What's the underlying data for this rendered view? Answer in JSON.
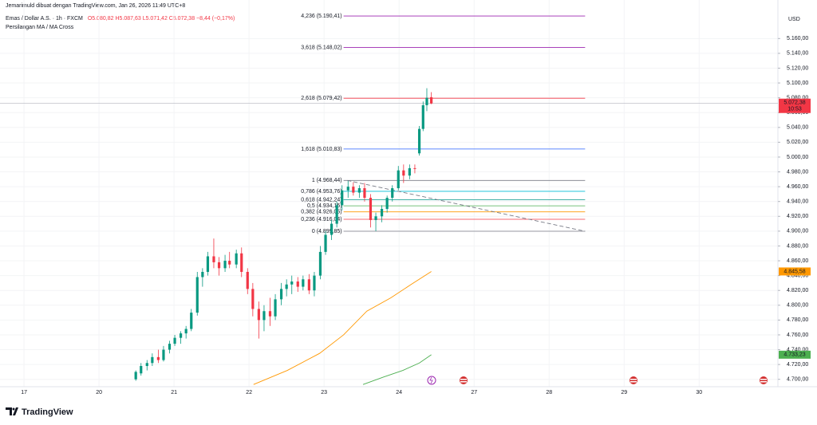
{
  "header": {
    "watermark": "Jemarimuld dibuat dengan TradingView.com, Jan 26, 2026 11:49 UTC+8",
    "symbol": "Emas / Dollar A.S. · 1h · FXCM",
    "ohlc": "O5.080,82 H5.087,63 L5.071,42 C5.072,38 −8,44 (−0,17%)",
    "indicator": "Persilangan MA / MA Cross"
  },
  "footer": {
    "logo": "TradingView"
  },
  "chart_data": {
    "type": "candlestick",
    "currency": "USD",
    "up_color": "#089981",
    "down_color": "#f23645",
    "xlim": [
      -0.32,
      10.05
    ],
    "ylim": [
      4690,
      5212
    ],
    "xticks": [
      {
        "value": 0,
        "label": "17"
      },
      {
        "value": 1,
        "label": "20"
      },
      {
        "value": 2,
        "label": "21"
      },
      {
        "value": 3,
        "label": "22"
      },
      {
        "value": 4,
        "label": "23"
      },
      {
        "value": 5,
        "label": "24"
      },
      {
        "value": 6,
        "label": "27"
      },
      {
        "value": 7,
        "label": "28"
      },
      {
        "value": 8,
        "label": "29"
      },
      {
        "value": 9,
        "label": "30"
      }
    ],
    "yticks": [
      {
        "value": 4700,
        "label": "4.700,00"
      },
      {
        "value": 4720,
        "label": "4.720,00"
      },
      {
        "value": 4740,
        "label": "4.740,00"
      },
      {
        "value": 4760,
        "label": "4.760,00"
      },
      {
        "value": 4780,
        "label": "4.780,00"
      },
      {
        "value": 4800,
        "label": "4.800,00"
      },
      {
        "value": 4820,
        "label": "4.820,00"
      },
      {
        "value": 4840,
        "label": "4.840,00"
      },
      {
        "value": 4860,
        "label": "4.860,00"
      },
      {
        "value": 4880,
        "label": "4.880,00"
      },
      {
        "value": 4900,
        "label": "4.900,00"
      },
      {
        "value": 4920,
        "label": "4.920,00"
      },
      {
        "value": 4940,
        "label": "4.940,00"
      },
      {
        "value": 4960,
        "label": "4.960,00"
      },
      {
        "value": 4980,
        "label": "4.980,00"
      },
      {
        "value": 5000,
        "label": "5.000,00"
      },
      {
        "value": 5020,
        "label": "5.020,00"
      },
      {
        "value": 5040,
        "label": "5.040,00"
      },
      {
        "value": 5060,
        "label": "5.060,00"
      },
      {
        "value": 5080,
        "label": "5.080,00"
      },
      {
        "value": 5100,
        "label": "5.100,00"
      },
      {
        "value": 5120,
        "label": "5.120,00"
      },
      {
        "value": 5140,
        "label": "5.140,00"
      },
      {
        "value": 5160,
        "label": "5.160,00"
      }
    ],
    "x": [
      1.49,
      1.56,
      1.64,
      1.71,
      1.79,
      1.86,
      1.94,
      2.01,
      2.09,
      2.16,
      2.23,
      2.31,
      2.38,
      2.45,
      2.53,
      2.6,
      2.68,
      2.74,
      2.83,
      2.9,
      2.98,
      3.05,
      3.13,
      3.2,
      3.28,
      3.35,
      3.43,
      3.5,
      3.57,
      3.65,
      3.72,
      3.8,
      3.87,
      3.95,
      4.02,
      4.1,
      4.17,
      4.24,
      4.32,
      4.39,
      4.47,
      4.54,
      4.62,
      4.69,
      4.77,
      4.84,
      4.91,
      4.99,
      5.06,
      5.14,
      5.21,
      5.27,
      5.32,
      5.37,
      5.43
    ],
    "open": [
      4700,
      4708,
      4718,
      4722,
      4730,
      4726,
      4740,
      4748,
      4756,
      4762,
      4768,
      4790,
      4838,
      4845,
      4866,
      4858,
      4850,
      4860,
      4855,
      4870,
      4845,
      4822,
      4795,
      4780,
      4792,
      4785,
      4808,
      4822,
      4828,
      4832,
      4825,
      4835,
      4820,
      4840,
      4872,
      4895,
      4910,
      4935,
      4955,
      4960,
      4952,
      4958,
      4945,
      4915,
      4920,
      4930,
      4945,
      4958,
      4982,
      4975,
      4985,
      5005,
      5038,
      5070,
      5080.82
    ],
    "high": [
      4712,
      4722,
      4726,
      4735,
      4740,
      4745,
      4752,
      4760,
      4765,
      4772,
      4795,
      4845,
      4850,
      4872,
      4890,
      4865,
      4868,
      4872,
      4875,
      4878,
      4850,
      4830,
      4805,
      4800,
      4810,
      4815,
      4830,
      4835,
      4840,
      4838,
      4840,
      4842,
      4845,
      4880,
      4900,
      4915,
      4940,
      4962,
      4968,
      4966,
      4962,
      4965,
      4950,
      4925,
      4935,
      4948,
      4962,
      4988,
      4990,
      4990,
      4990,
      5042,
      5075,
      5093,
      5087.63
    ],
    "low": [
      4698,
      4705,
      4712,
      4718,
      4722,
      4724,
      4735,
      4745,
      4748,
      4755,
      4765,
      4786,
      4825,
      4840,
      4850,
      4840,
      4845,
      4850,
      4850,
      4838,
      4815,
      4785,
      4755,
      4765,
      4772,
      4780,
      4800,
      4812,
      4815,
      4818,
      4820,
      4815,
      4812,
      4835,
      4868,
      4888,
      4905,
      4928,
      4945,
      4948,
      4945,
      4940,
      4905,
      4900,
      4912,
      4925,
      4940,
      4955,
      4965,
      4970,
      4978,
      5002,
      5035,
      5062,
      5071.42
    ],
    "close": [
      4710,
      4718,
      4722,
      4730,
      4726,
      4740,
      4748,
      4756,
      4762,
      4768,
      4790,
      4838,
      4845,
      4866,
      4858,
      4850,
      4860,
      4855,
      4870,
      4845,
      4822,
      4795,
      4780,
      4792,
      4785,
      4808,
      4822,
      4828,
      4832,
      4825,
      4835,
      4820,
      4840,
      4872,
      4895,
      4910,
      4935,
      4955,
      4960,
      4952,
      4958,
      4945,
      4915,
      4920,
      4930,
      4945,
      4958,
      4982,
      4975,
      4985,
      4984,
      5038,
      5070,
      5080,
      5072.38
    ],
    "moving_averages": [
      {
        "color": "#ff9800",
        "x": [
          3.06,
          3.51,
          3.94,
          4.26,
          4.57,
          4.89,
          5.16,
          5.43
        ],
        "values": [
          4693,
          4712,
          4735,
          4760,
          4792,
          4810,
          4828,
          4845.58
        ],
        "last": {
          "value": 4845.58,
          "label": "4.845,58"
        }
      },
      {
        "color": "#4caf50",
        "x": [
          4.52,
          4.79,
          5.05,
          5.27,
          5.43
        ],
        "values": [
          4693,
          4703,
          4712,
          4722,
          4733.23
        ],
        "last": {
          "value": 4733.23,
          "label": "4.733,23"
        }
      }
    ],
    "last_price": {
      "value": 5072.38,
      "label": "5.072,38",
      "color": "#f23645",
      "countdown": "10:53"
    },
    "fib_x": [
      4.26,
      7.48
    ],
    "fib_levels": [
      {
        "label": "4,236 (5.190,41)",
        "price": 5190.41,
        "color": "#9c27b0"
      },
      {
        "label": "3,618 (5.148,02)",
        "price": 5148.02,
        "color": "#9c27b0"
      },
      {
        "label": "2,618 (5.079,42)",
        "price": 5079.42,
        "color": "#f23645"
      },
      {
        "label": "1,618 (5.010,83)",
        "price": 5010.83,
        "color": "#2962ff"
      },
      {
        "label": "1 (4.968,44)",
        "price": 4968.44,
        "color": "#787b86"
      },
      {
        "label": "0,786 (4.953,76)",
        "price": 4953.76,
        "color": "#00bcd4"
      },
      {
        "label": "0,618 (4.942,24)",
        "price": 4942.24,
        "color": "#009688"
      },
      {
        "label": "0,5 (4.934,15)",
        "price": 4934.15,
        "color": "#4caf50"
      },
      {
        "label": "0,382 (4.926,05)",
        "price": 4926.05,
        "color": "#ff9800"
      },
      {
        "label": "0,236 (4.916,04)",
        "price": 4916.04,
        "color": "#f23645"
      },
      {
        "label": "0 (4.899,85)",
        "price": 4899.85,
        "color": "#787b86"
      }
    ],
    "trendline": {
      "color": "#787b86",
      "x": [
        4.31,
        7.48
      ],
      "values": [
        4968.44,
        4899.85
      ]
    }
  }
}
